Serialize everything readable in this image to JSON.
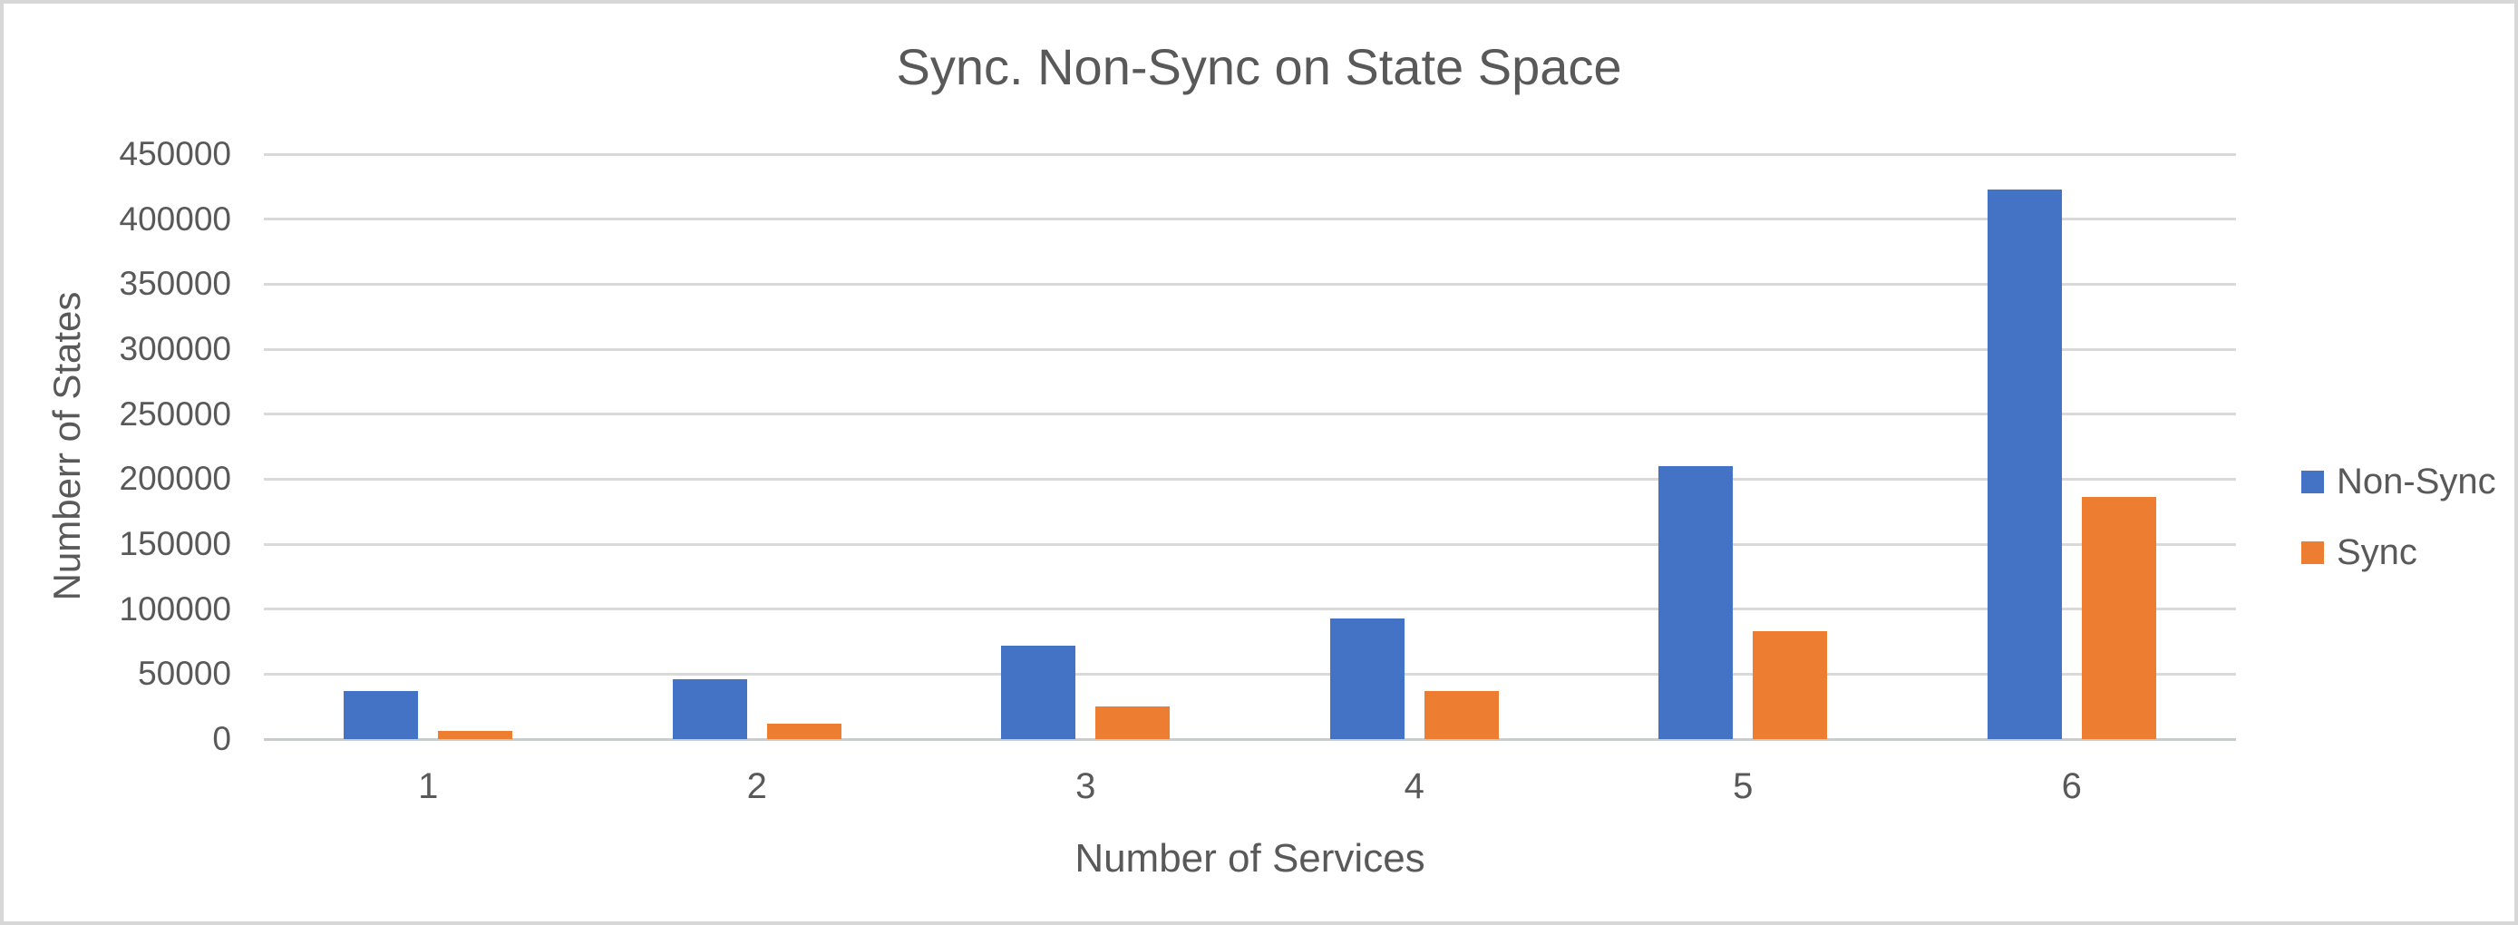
{
  "chart_data": {
    "type": "bar",
    "title": "Sync. Non-Sync on State Space",
    "xlabel": "Number of Services",
    "ylabel": "Numberr of States",
    "categories": [
      "1",
      "2",
      "3",
      "4",
      "5",
      "6"
    ],
    "series": [
      {
        "name": "Non-Sync",
        "color": "#4472C4",
        "values": [
          37000,
          46000,
          72000,
          93000,
          210000,
          423000
        ]
      },
      {
        "name": "Sync",
        "color": "#ED7D31",
        "values": [
          6000,
          12000,
          25000,
          37000,
          83000,
          186000
        ]
      }
    ],
    "ylim": [
      0,
      450000
    ],
    "ytick_step": 50000,
    "ytick_labels": [
      "0",
      "50000",
      "100000",
      "150000",
      "200000",
      "250000",
      "300000",
      "350000",
      "400000",
      "450000"
    ],
    "grid": true,
    "legend_position": "right"
  },
  "colors": {
    "text": "#595959",
    "gridline": "#d9d9d9",
    "axis_line": "#c9ccce",
    "frame": "#d7d7d7"
  }
}
